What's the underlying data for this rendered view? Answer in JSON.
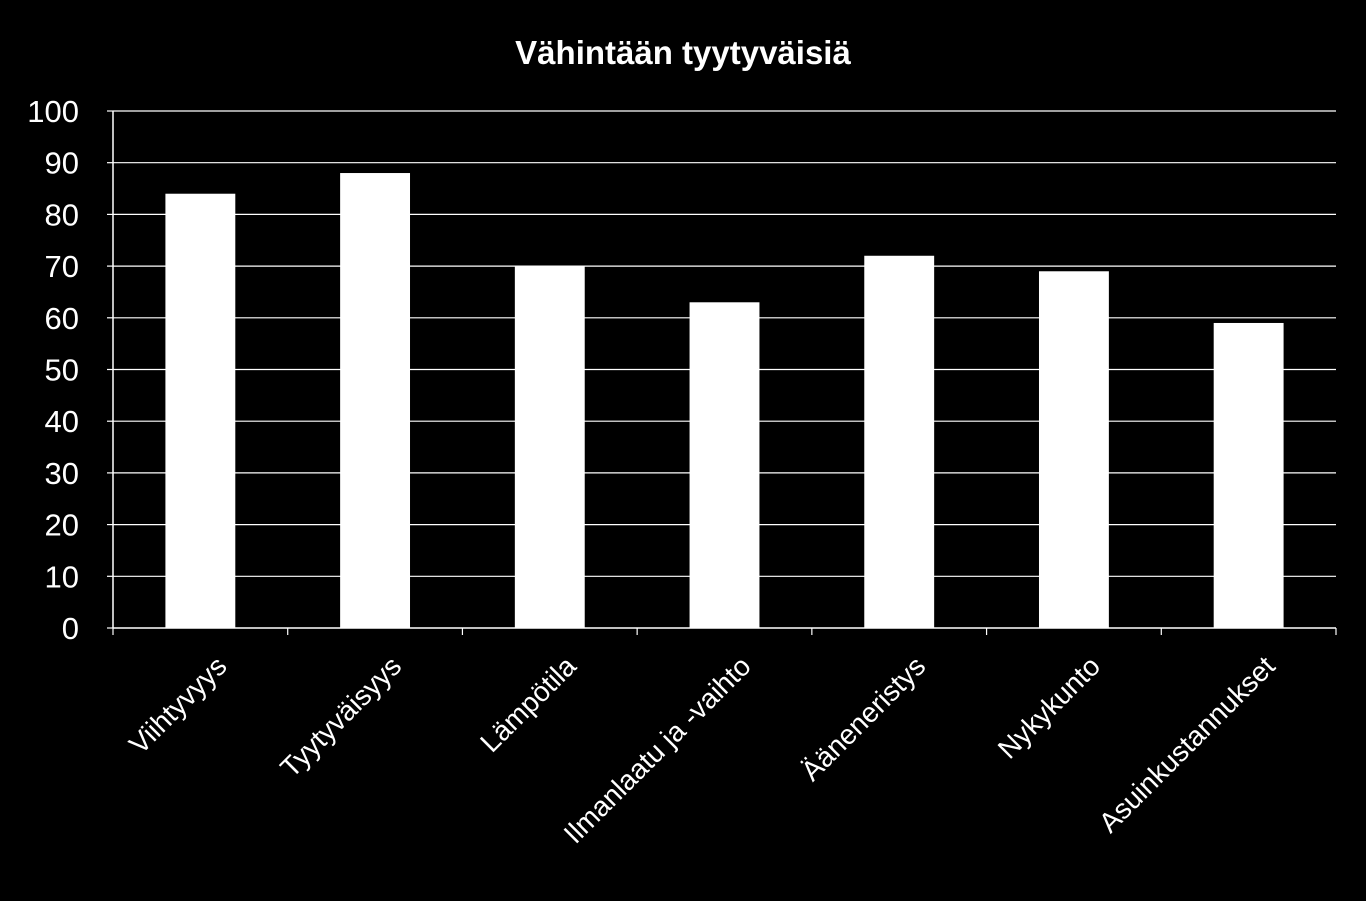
{
  "chart_data": {
    "type": "bar",
    "title": "Vähintään tyytyväisiä",
    "xlabel": "",
    "ylabel": "",
    "categories": [
      "Viihtyvyys",
      "Tyytyväisyys",
      "Lämpötila",
      "Ilmanlaatu ja -vaihto",
      "Ääneneristys",
      "Nykykunto",
      "Asuinkustannukset"
    ],
    "values": [
      84,
      88,
      70,
      63,
      72,
      69,
      59
    ],
    "ylim": [
      0,
      100
    ],
    "yticks": [
      0,
      10,
      20,
      30,
      40,
      50,
      60,
      70,
      80,
      90,
      100
    ],
    "grid": true,
    "legend": "none",
    "colors": {
      "background": "#000000",
      "bar": "#ffffff",
      "grid": "#ffffff",
      "text": "#ffffff"
    }
  }
}
